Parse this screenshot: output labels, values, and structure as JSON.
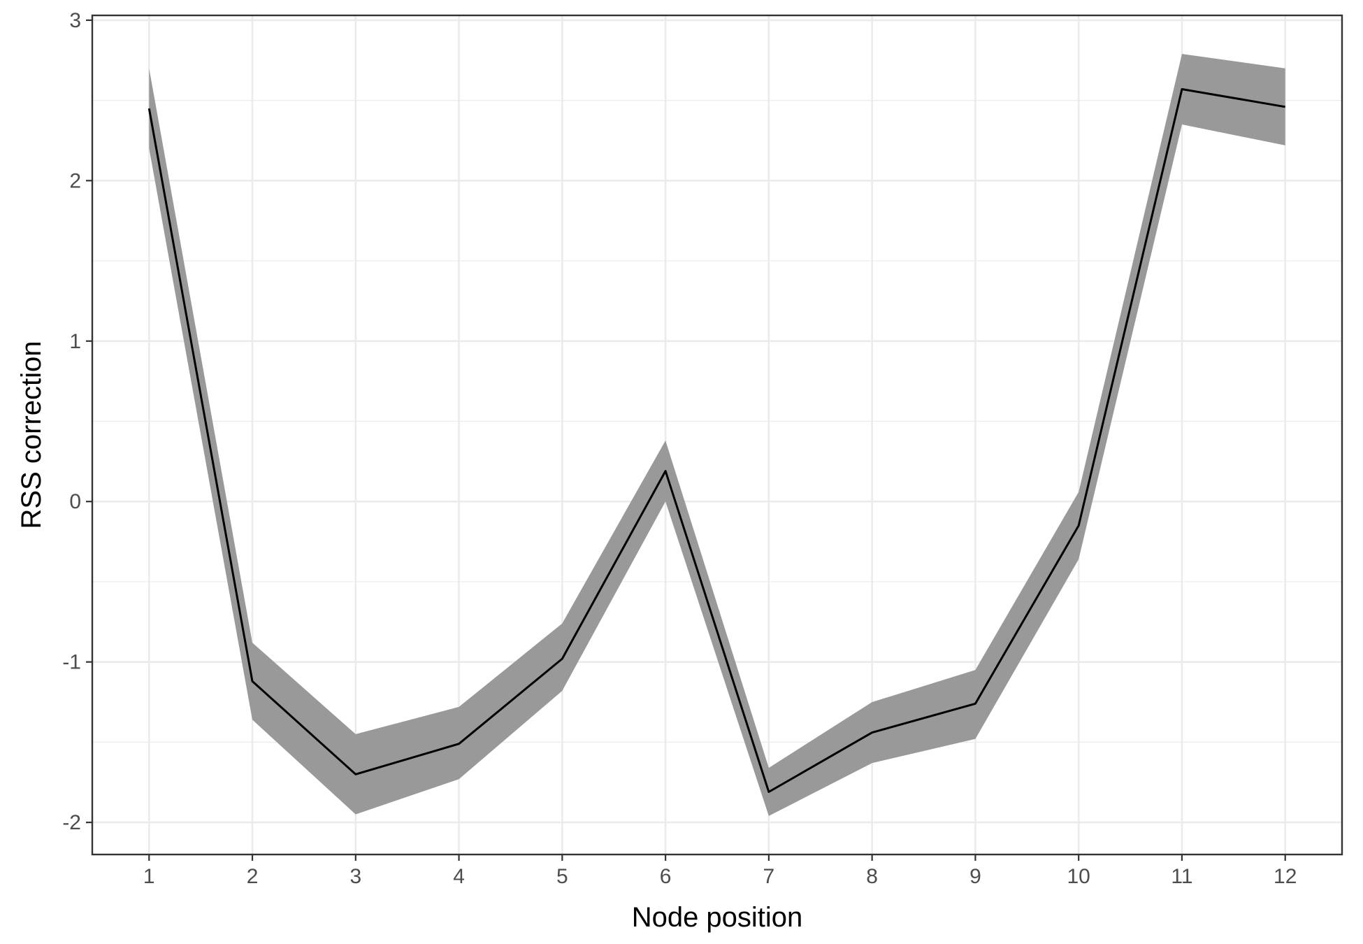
{
  "chart_data": {
    "type": "line",
    "xlabel": "Node position",
    "ylabel": "RSS correction",
    "x": [
      1,
      2,
      3,
      4,
      5,
      6,
      7,
      8,
      9,
      10,
      11,
      12
    ],
    "series": [
      {
        "values": [
          2.45,
          -1.12,
          -1.7,
          -1.51,
          -0.98,
          0.19,
          -1.81,
          -1.44,
          -1.26,
          -0.15,
          2.57,
          2.46
        ],
        "lower": [
          2.2,
          -1.36,
          -1.95,
          -1.73,
          -1.18,
          0.0,
          -1.96,
          -1.63,
          -1.48,
          -0.36,
          2.35,
          2.22
        ],
        "upper": [
          2.7,
          -0.88,
          -1.45,
          -1.28,
          -0.76,
          0.38,
          -1.66,
          -1.25,
          -1.05,
          0.06,
          2.79,
          2.7
        ]
      }
    ],
    "xlim": [
      0.45,
      12.55
    ],
    "ylim": [
      -2.2,
      3.03
    ],
    "x_ticks": [
      "1",
      "2",
      "3",
      "4",
      "5",
      "6",
      "7",
      "8",
      "9",
      "10",
      "11",
      "12"
    ],
    "y_ticks": [
      "-2",
      "-1",
      "0",
      "1",
      "2",
      "3"
    ],
    "y_tick_values": [
      -2,
      -1,
      0,
      1,
      2,
      3
    ],
    "grid": true,
    "colors": {
      "line": "#000000",
      "ribbon": "#999999",
      "grid": "#ebebeb",
      "panel_border": "#333333"
    }
  }
}
